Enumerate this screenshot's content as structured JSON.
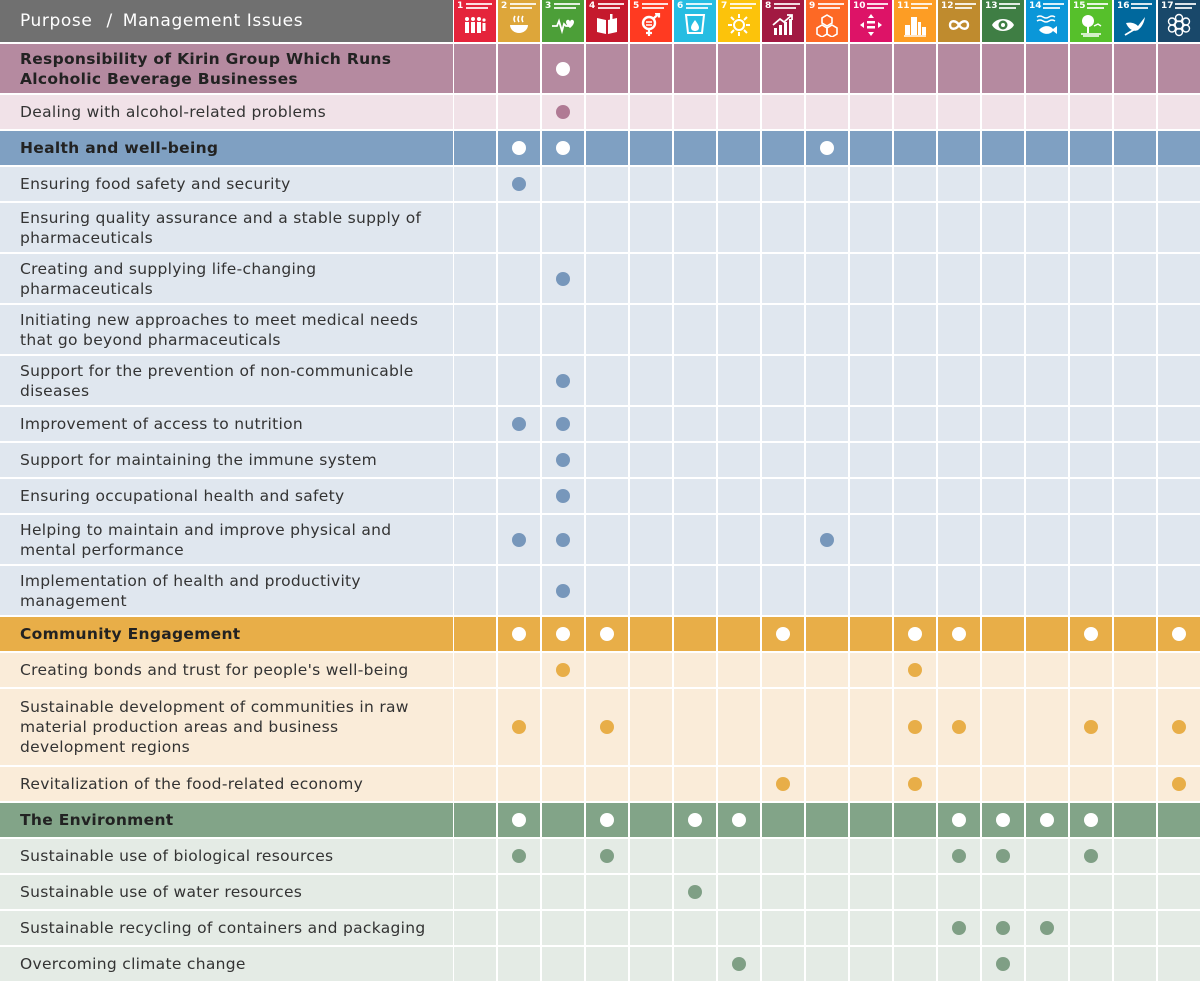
{
  "header": {
    "purpose": "Purpose",
    "separator": "/",
    "issues": "Management Issues"
  },
  "goals": [
    {
      "num": "1",
      "color": "#e5243b",
      "icon": "people-icon"
    },
    {
      "num": "2",
      "color": "#dda63a",
      "icon": "bowl-icon"
    },
    {
      "num": "3",
      "color": "#4c9f38",
      "icon": "heartbeat-icon"
    },
    {
      "num": "4",
      "color": "#c5192d",
      "icon": "book-icon"
    },
    {
      "num": "5",
      "color": "#ff3a21",
      "icon": "gender-icon"
    },
    {
      "num": "6",
      "color": "#26bde2",
      "icon": "water-drop-icon"
    },
    {
      "num": "7",
      "color": "#fcc30b",
      "icon": "sun-icon"
    },
    {
      "num": "8",
      "color": "#a21942",
      "icon": "growth-chart-icon"
    },
    {
      "num": "9",
      "color": "#fd6925",
      "icon": "cubes-icon"
    },
    {
      "num": "10",
      "color": "#dd1367",
      "icon": "equality-icon"
    },
    {
      "num": "11",
      "color": "#fd9d24",
      "icon": "city-icon"
    },
    {
      "num": "12",
      "color": "#bf8b2e",
      "icon": "infinity-icon"
    },
    {
      "num": "13",
      "color": "#3f7e44",
      "icon": "eye-icon"
    },
    {
      "num": "14",
      "color": "#0a97d9",
      "icon": "fish-icon"
    },
    {
      "num": "15",
      "color": "#56c02b",
      "icon": "tree-icon"
    },
    {
      "num": "16",
      "color": "#00689d",
      "icon": "dove-icon"
    },
    {
      "num": "17",
      "color": "#19486a",
      "icon": "partnership-icon"
    }
  ],
  "categories": [
    {
      "title": "Responsibility of Kirin Group Which Runs Alcoholic Beverage Businesses",
      "colors": {
        "header": "#b58aa0",
        "row": "#f1e2e8",
        "dot": "#b07a94"
      },
      "goals": [
        3
      ],
      "issues": [
        {
          "label": "Dealing with alcohol-related problems",
          "goals": [
            3
          ]
        }
      ]
    },
    {
      "title": "Health and well-being",
      "colors": {
        "header": "#7fa0c2",
        "row": "#e0e7ef",
        "dot": "#7797bb"
      },
      "goals": [
        2,
        3,
        9
      ],
      "issues": [
        {
          "label": "Ensuring food safety and security",
          "goals": [
            2
          ]
        },
        {
          "label": "Ensuring quality assurance and a stable supply of pharmaceuticals",
          "goals": []
        },
        {
          "label": "Creating and supplying life-changing pharmaceuticals",
          "goals": [
            3
          ]
        },
        {
          "label": "Initiating new approaches to meet medical needs that go beyond pharmaceuticals",
          "goals": []
        },
        {
          "label": "Support for the prevention of non-communicable diseases",
          "goals": [
            3
          ]
        },
        {
          "label": "Improvement of access to nutrition",
          "goals": [
            2,
            3
          ]
        },
        {
          "label": "Support for maintaining the immune system",
          "goals": [
            3
          ]
        },
        {
          "label": "Ensuring occupational health and safety",
          "goals": [
            3
          ]
        },
        {
          "label": "Helping to maintain and improve physical and mental performance",
          "goals": [
            2,
            3,
            9
          ]
        },
        {
          "label": "Implementation of health and productivity management",
          "goals": [
            3
          ]
        }
      ]
    },
    {
      "title": "Community Engagement",
      "colors": {
        "header": "#e8ae48",
        "row": "#faecd9",
        "dot": "#e8ae48"
      },
      "goals": [
        2,
        3,
        4,
        8,
        11,
        12,
        15,
        17
      ],
      "issues": [
        {
          "label": "Creating bonds and trust for people's well-being",
          "goals": [
            3,
            11
          ]
        },
        {
          "label": "Sustainable development of communities in raw material production areas and business development regions",
          "goals": [
            2,
            4,
            11,
            12,
            15,
            17
          ]
        },
        {
          "label": "Revitalization of the food-related economy",
          "goals": [
            8,
            11,
            17
          ]
        }
      ]
    },
    {
      "title": "The Environment",
      "colors": {
        "header": "#82a488",
        "row": "#e4ebe5",
        "dot": "#7f9f85"
      },
      "goals": [
        2,
        4,
        6,
        7,
        12,
        13,
        14,
        15
      ],
      "issues": [
        {
          "label": "Sustainable use of biological resources",
          "goals": [
            2,
            4,
            12,
            13,
            15
          ]
        },
        {
          "label": "Sustainable use of water resources",
          "goals": [
            6
          ]
        },
        {
          "label": "Sustainable recycling of containers and packaging",
          "goals": [
            12,
            13,
            14
          ]
        },
        {
          "label": "Overcoming climate change",
          "goals": [
            7,
            13
          ]
        }
      ]
    }
  ]
}
